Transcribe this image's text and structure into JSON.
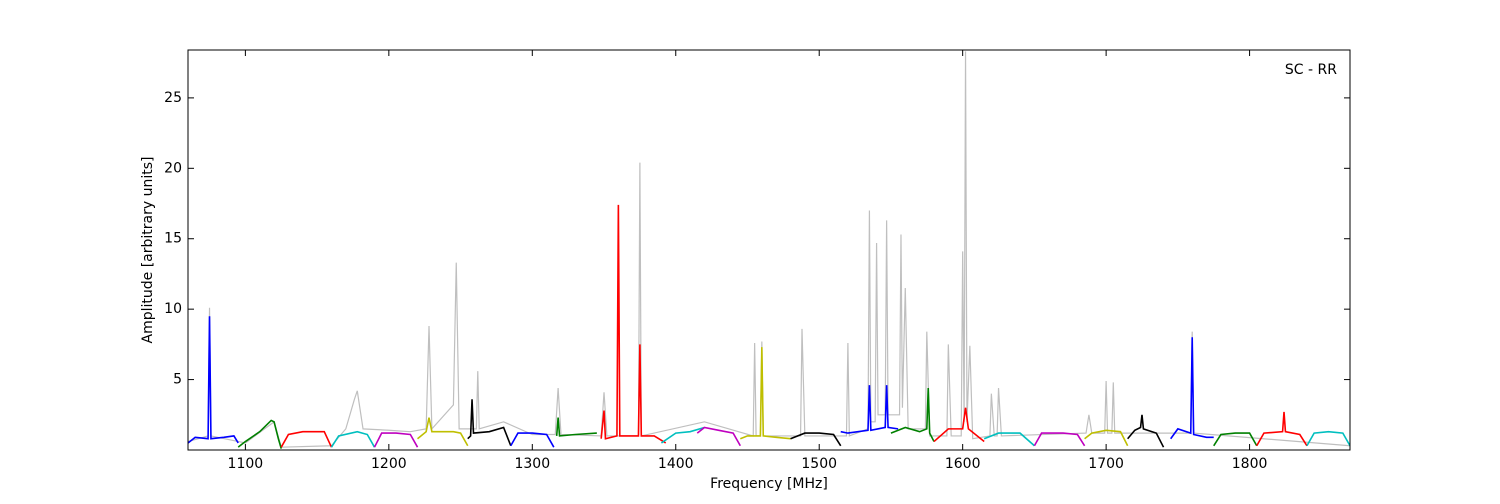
{
  "chart_data": {
    "type": "line",
    "annotation": "SC - RR",
    "xlabel": "Frequency [MHz]",
    "ylabel": "Amplitude [arbitrary units]",
    "xlim": [
      1060,
      1870
    ],
    "ylim": [
      0,
      28.4
    ],
    "xticks": [
      1100,
      1200,
      1300,
      1400,
      1500,
      1600,
      1700,
      1800
    ],
    "yticks": [
      5,
      10,
      15,
      20,
      25
    ],
    "grid": false,
    "series": [
      {
        "color": "#bfbfbf",
        "x": [
          1060,
          1074,
          1075,
          1076,
          1100,
          1120,
          1125,
          1160,
          1170,
          1176,
          1178,
          1182,
          1200,
          1215,
          1226,
          1228,
          1230,
          1245,
          1247,
          1249,
          1261,
          1262,
          1263,
          1280,
          1300,
          1316,
          1318,
          1320,
          1348,
          1350,
          1352,
          1374,
          1375,
          1376,
          1420,
          1454,
          1455,
          1456,
          1459,
          1460,
          1461,
          1487,
          1488,
          1490,
          1519,
          1520,
          1521,
          1534,
          1535,
          1536,
          1539,
          1540,
          1541,
          1546,
          1547,
          1548,
          1556,
          1557,
          1558,
          1560,
          1562,
          1574,
          1575,
          1577,
          1589,
          1590,
          1592,
          1599,
          1600,
          1601,
          1602,
          1603,
          1605,
          1607,
          1619,
          1620,
          1622,
          1624,
          1625,
          1627,
          1686,
          1688,
          1690,
          1699,
          1700,
          1701,
          1704,
          1705,
          1706,
          1759,
          1760,
          1761,
          1870
        ],
        "values": [
          0.6,
          1.0,
          10.1,
          1.0,
          0.5,
          2.0,
          0.2,
          0.3,
          1.5,
          3.6,
          4.2,
          1.5,
          1.4,
          1.3,
          1.5,
          8.8,
          1.5,
          3.2,
          13.3,
          1.5,
          1.5,
          5.6,
          1.5,
          2.0,
          1.1,
          1.1,
          4.4,
          1.1,
          1.0,
          4.1,
          1.0,
          1.0,
          20.4,
          1.0,
          2.0,
          1.0,
          7.6,
          1.0,
          1.0,
          7.7,
          1.0,
          1.0,
          8.6,
          1.0,
          1.0,
          7.6,
          1.0,
          1.5,
          17.0,
          2.0,
          2.0,
          14.7,
          2.5,
          2.5,
          16.3,
          2.5,
          2.5,
          15.3,
          3.0,
          11.5,
          1.5,
          1.5,
          8.4,
          1.0,
          1.0,
          7.5,
          1.0,
          1.0,
          14.1,
          2.0,
          28.3,
          2.0,
          7.4,
          0.8,
          1.0,
          4.0,
          1.0,
          1.0,
          4.4,
          1.0,
          1.2,
          2.5,
          1.2,
          1.2,
          4.9,
          1.2,
          1.2,
          4.8,
          1.2,
          1.2,
          8.4,
          1.2,
          0.3
        ]
      },
      {
        "color": "#0000ff",
        "x": [
          1060,
          1065,
          1074,
          1075,
          1076,
          1085,
          1092,
          1095
        ],
        "values": [
          0.5,
          0.9,
          0.8,
          9.5,
          0.8,
          0.9,
          1.0,
          0.5
        ]
      },
      {
        "color": "#008000",
        "x": [
          1095,
          1100,
          1110,
          1118,
          1120,
          1123,
          1125
        ],
        "values": [
          0.2,
          0.6,
          1.3,
          2.1,
          2.0,
          0.8,
          0.1
        ]
      },
      {
        "color": "#ff0000",
        "x": [
          1125,
          1130,
          1140,
          1155,
          1160
        ],
        "values": [
          0.2,
          1.1,
          1.3,
          1.3,
          0.2
        ]
      },
      {
        "color": "#00bfbf",
        "x": [
          1160,
          1165,
          1178,
          1185,
          1190
        ],
        "values": [
          0.2,
          1.0,
          1.3,
          1.1,
          0.2
        ]
      },
      {
        "color": "#bf00bf",
        "x": [
          1190,
          1195,
          1205,
          1215,
          1220
        ],
        "values": [
          0.2,
          1.2,
          1.2,
          1.1,
          0.2
        ]
      },
      {
        "color": "#bfbf00",
        "x": [
          1220,
          1226,
          1228,
          1230,
          1245,
          1250,
          1255
        ],
        "values": [
          0.8,
          1.3,
          2.3,
          1.3,
          1.3,
          1.2,
          0.3
        ]
      },
      {
        "color": "#000000",
        "x": [
          1255,
          1257,
          1258,
          1259,
          1270,
          1280,
          1285
        ],
        "values": [
          0.8,
          1.0,
          3.6,
          1.2,
          1.3,
          1.6,
          0.3
        ]
      },
      {
        "color": "#0000ff",
        "x": [
          1285,
          1290,
          1300,
          1310,
          1315
        ],
        "values": [
          0.3,
          1.2,
          1.2,
          1.1,
          0.2
        ]
      },
      {
        "color": "#008000",
        "x": [
          1317,
          1318,
          1319,
          1330,
          1345
        ],
        "values": [
          1.0,
          2.3,
          1.0,
          1.1,
          1.2
        ]
      },
      {
        "color": "#ff0000",
        "x": [
          1348,
          1350,
          1351,
          1359,
          1360,
          1361,
          1374,
          1375,
          1376,
          1385,
          1393
        ],
        "values": [
          0.8,
          2.8,
          0.8,
          1.0,
          17.4,
          1.0,
          1.0,
          7.5,
          1.0,
          1.0,
          0.5
        ]
      },
      {
        "color": "#00bfbf",
        "x": [
          1390,
          1400,
          1410,
          1420
        ],
        "values": [
          0.5,
          1.2,
          1.3,
          1.6
        ]
      },
      {
        "color": "#bf00bf",
        "x": [
          1415,
          1420,
          1430,
          1440,
          1445
        ],
        "values": [
          1.2,
          1.6,
          1.4,
          1.2,
          0.3
        ]
      },
      {
        "color": "#bfbf00",
        "x": [
          1445,
          1450,
          1459,
          1460,
          1461,
          1470,
          1480
        ],
        "values": [
          0.8,
          1.0,
          1.0,
          7.3,
          1.0,
          0.9,
          0.8
        ]
      },
      {
        "color": "#000000",
        "x": [
          1480,
          1490,
          1500,
          1510,
          1515
        ],
        "values": [
          0.8,
          1.2,
          1.2,
          1.1,
          0.3
        ]
      },
      {
        "color": "#0000ff",
        "x": [
          1515,
          1520,
          1534,
          1535,
          1536,
          1546,
          1547,
          1548,
          1555
        ],
        "values": [
          1.3,
          1.2,
          1.4,
          4.6,
          1.4,
          1.6,
          4.6,
          1.6,
          1.5
        ]
      },
      {
        "color": "#008000",
        "x": [
          1550,
          1560,
          1570,
          1575,
          1576,
          1577,
          1580
        ],
        "values": [
          1.2,
          1.6,
          1.3,
          1.5,
          4.4,
          1.2,
          0.6
        ]
      },
      {
        "color": "#ff0000",
        "x": [
          1580,
          1590,
          1600,
          1602,
          1604,
          1615
        ],
        "values": [
          0.6,
          1.5,
          1.5,
          3.0,
          1.5,
          0.6
        ]
      },
      {
        "color": "#00bfbf",
        "x": [
          1615,
          1625,
          1640,
          1650
        ],
        "values": [
          0.8,
          1.2,
          1.2,
          0.3
        ]
      },
      {
        "color": "#bf00bf",
        "x": [
          1650,
          1655,
          1670,
          1680,
          1685
        ],
        "values": [
          0.3,
          1.2,
          1.2,
          1.1,
          0.3
        ]
      },
      {
        "color": "#bfbf00",
        "x": [
          1685,
          1690,
          1700,
          1710,
          1715
        ],
        "values": [
          0.8,
          1.2,
          1.4,
          1.3,
          0.3
        ]
      },
      {
        "color": "#000000",
        "x": [
          1715,
          1720,
          1724,
          1725,
          1726,
          1735,
          1740
        ],
        "values": [
          0.8,
          1.4,
          1.6,
          2.5,
          1.5,
          1.2,
          0.2
        ]
      },
      {
        "color": "#0000ff",
        "x": [
          1745,
          1750,
          1759,
          1760,
          1761,
          1770,
          1775
        ],
        "values": [
          0.8,
          1.5,
          1.2,
          8.0,
          1.1,
          0.9,
          0.9
        ]
      },
      {
        "color": "#008000",
        "x": [
          1775,
          1780,
          1790,
          1800,
          1805
        ],
        "values": [
          0.3,
          1.1,
          1.2,
          1.2,
          0.3
        ]
      },
      {
        "color": "#ff0000",
        "x": [
          1805,
          1810,
          1823,
          1824,
          1825,
          1835,
          1840
        ],
        "values": [
          0.3,
          1.2,
          1.3,
          2.7,
          1.3,
          1.1,
          0.3
        ]
      },
      {
        "color": "#00bfbf",
        "x": [
          1840,
          1845,
          1855,
          1865,
          1870
        ],
        "values": [
          0.3,
          1.2,
          1.3,
          1.2,
          0.3
        ]
      }
    ]
  }
}
